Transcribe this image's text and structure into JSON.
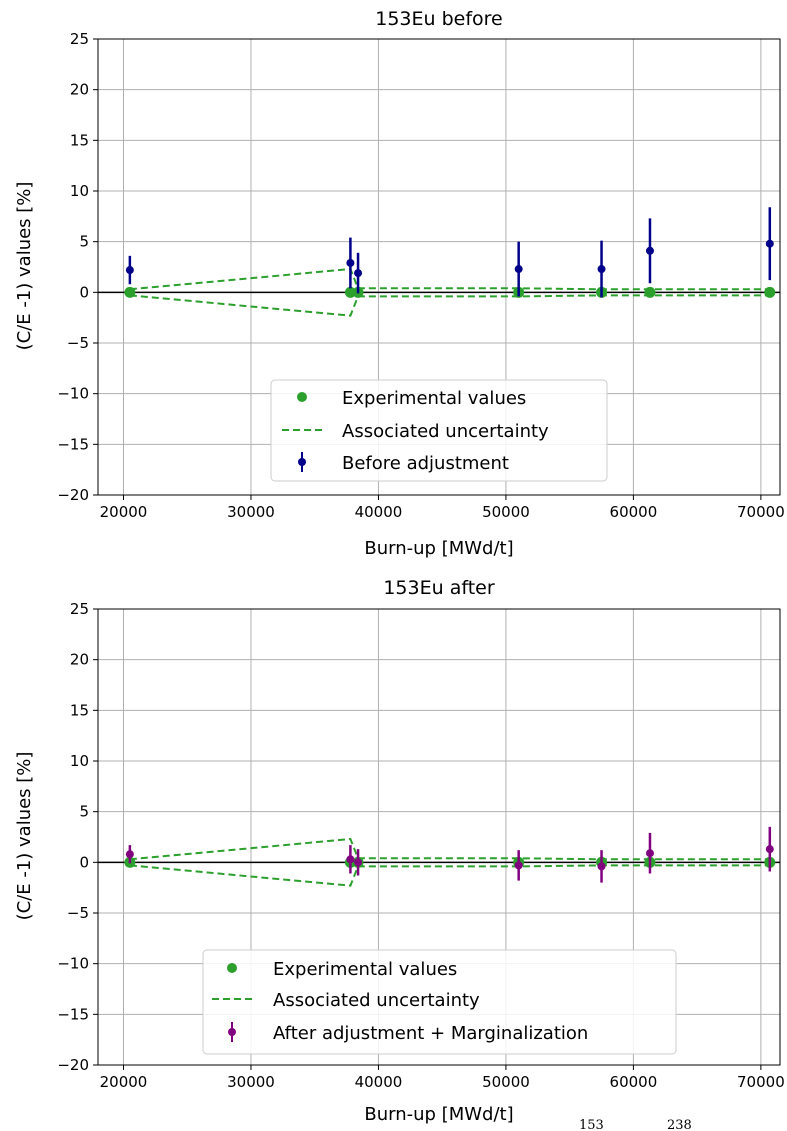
{
  "colors": {
    "experimental": "#2ca02c",
    "before": "#00008b",
    "after": "#800080",
    "zero_line": "#000000",
    "grid": "#b0b0b0"
  },
  "chart_data": [
    {
      "type": "scatter",
      "title": "153Eu before",
      "xlabel": "Burn-up [MWd/t]",
      "ylabel": "(C/E -1) values [%]",
      "xlim": [
        18000,
        71500
      ],
      "ylim": [
        -20,
        25
      ],
      "xticks": [
        20000,
        30000,
        40000,
        50000,
        60000,
        70000
      ],
      "xtick_labels": [
        "20000",
        "30000",
        "40000",
        "50000",
        "60000",
        "70000"
      ],
      "yticks": [
        -20,
        -15,
        -10,
        -5,
        0,
        5,
        10,
        15,
        20,
        25
      ],
      "ytick_labels": [
        "−20",
        "−15",
        "−10",
        "−5",
        "0",
        "5",
        "10",
        "15",
        "20",
        "25"
      ],
      "grid": true,
      "legend_position": "lower-center",
      "x": [
        20500,
        37800,
        38400,
        51000,
        57500,
        61300,
        70700
      ],
      "series": [
        {
          "name": "Experimental values",
          "style": "marker",
          "color": "#2ca02c",
          "values": [
            0,
            0,
            0,
            0,
            0,
            0,
            0
          ]
        },
        {
          "name": "Associated uncertainty",
          "style": "dashed-band",
          "color": "#2ca02c",
          "upper": [
            0.3,
            2.3,
            0.4,
            0.4,
            0.3,
            0.3,
            0.3
          ],
          "lower": [
            -0.3,
            -2.3,
            -0.4,
            -0.4,
            -0.3,
            -0.3,
            -0.3
          ]
        },
        {
          "name": "Before adjustment",
          "style": "errorbar",
          "color": "#00008b",
          "values": [
            2.2,
            2.9,
            1.9,
            2.3,
            2.3,
            4.1,
            4.8
          ],
          "errors": [
            1.4,
            2.5,
            2.0,
            2.7,
            2.8,
            3.2,
            3.6
          ]
        }
      ]
    },
    {
      "type": "scatter",
      "title": "153Eu after",
      "xlabel": "Burn-up [MWd/t]",
      "ylabel": "(C/E -1) values [%]",
      "xlim": [
        18000,
        71500
      ],
      "ylim": [
        -20,
        25
      ],
      "xticks": [
        20000,
        30000,
        40000,
        50000,
        60000,
        70000
      ],
      "xtick_labels": [
        "20000",
        "30000",
        "40000",
        "50000",
        "60000",
        "70000"
      ],
      "yticks": [
        -20,
        -15,
        -10,
        -5,
        0,
        5,
        10,
        15,
        20,
        25
      ],
      "ytick_labels": [
        "−20",
        "−15",
        "−10",
        "−5",
        "0",
        "5",
        "10",
        "15",
        "20",
        "25"
      ],
      "grid": true,
      "legend_position": "lower-center",
      "x": [
        20500,
        37800,
        38400,
        51000,
        57500,
        61300,
        70700
      ],
      "series": [
        {
          "name": "Experimental values",
          "style": "marker",
          "color": "#2ca02c",
          "values": [
            0,
            0,
            0,
            0,
            0,
            0,
            0
          ]
        },
        {
          "name": "Associated uncertainty",
          "style": "dashed-band",
          "color": "#2ca02c",
          "upper": [
            0.3,
            2.3,
            0.4,
            0.4,
            0.3,
            0.3,
            0.3
          ],
          "lower": [
            -0.3,
            -2.3,
            -0.4,
            -0.4,
            -0.3,
            -0.3,
            -0.3
          ]
        },
        {
          "name": "After adjustment + Marginalization",
          "style": "errorbar",
          "color": "#800080",
          "values": [
            0.8,
            0.3,
            0.0,
            -0.3,
            -0.4,
            0.9,
            1.3
          ],
          "errors": [
            0.9,
            1.4,
            1.3,
            1.5,
            1.6,
            2.0,
            2.2
          ]
        }
      ]
    }
  ],
  "footer": {
    "superscript_a": "153",
    "superscript_b": "238"
  }
}
